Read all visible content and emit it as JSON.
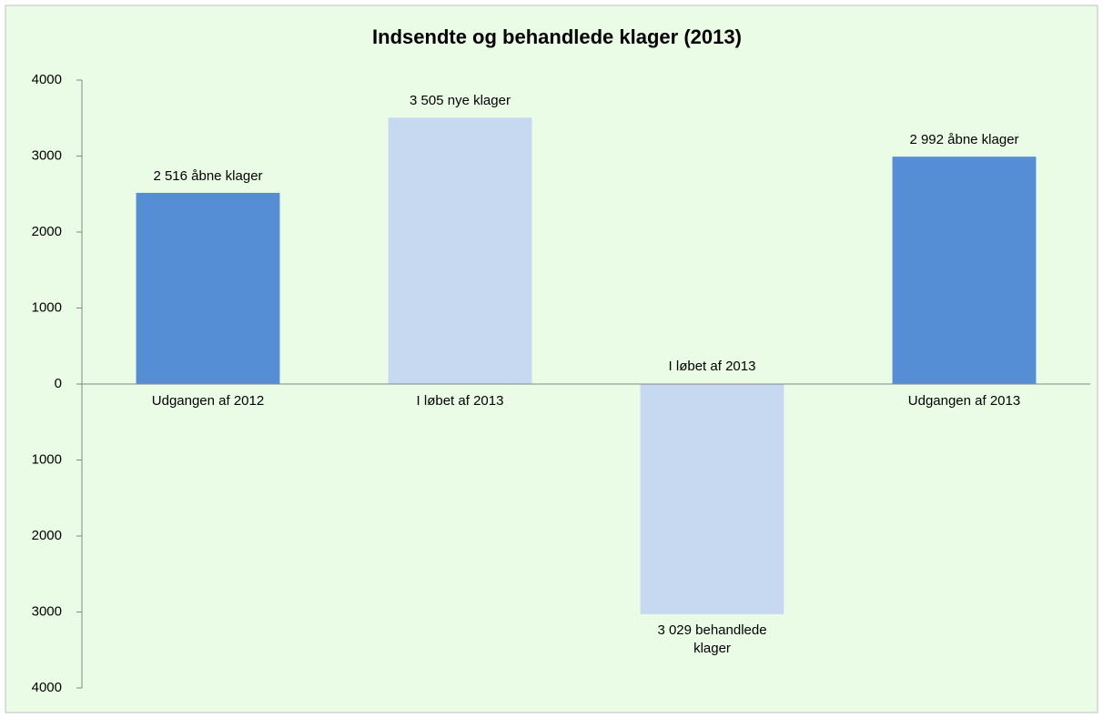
{
  "chart_data": {
    "type": "bar",
    "title": "Indsendte og behandlede klager (2013)",
    "categories": [
      "Udgangen af 2012",
      "I løbet af 2013",
      "I løbet af 2013",
      "Udgangen af 2013"
    ],
    "values": [
      2516,
      3505,
      -3029,
      2992
    ],
    "value_labels": [
      "2 516 åbne klager",
      "3 505 nye klager",
      "3 029 behandlede klager",
      "2 992 åbne klager"
    ],
    "colors": [
      "#558ed5",
      "#c6d9f1",
      "#c6d9f1",
      "#558ed5"
    ],
    "ylim": [
      -4000,
      4000
    ],
    "yticks": [
      {
        "value": -4000,
        "label": "4000"
      },
      {
        "value": -3000,
        "label": "3000"
      },
      {
        "value": -2000,
        "label": "2000"
      },
      {
        "value": -1000,
        "label": "1000"
      },
      0,
      1000,
      2000,
      3000,
      4000
    ],
    "grid": false
  }
}
